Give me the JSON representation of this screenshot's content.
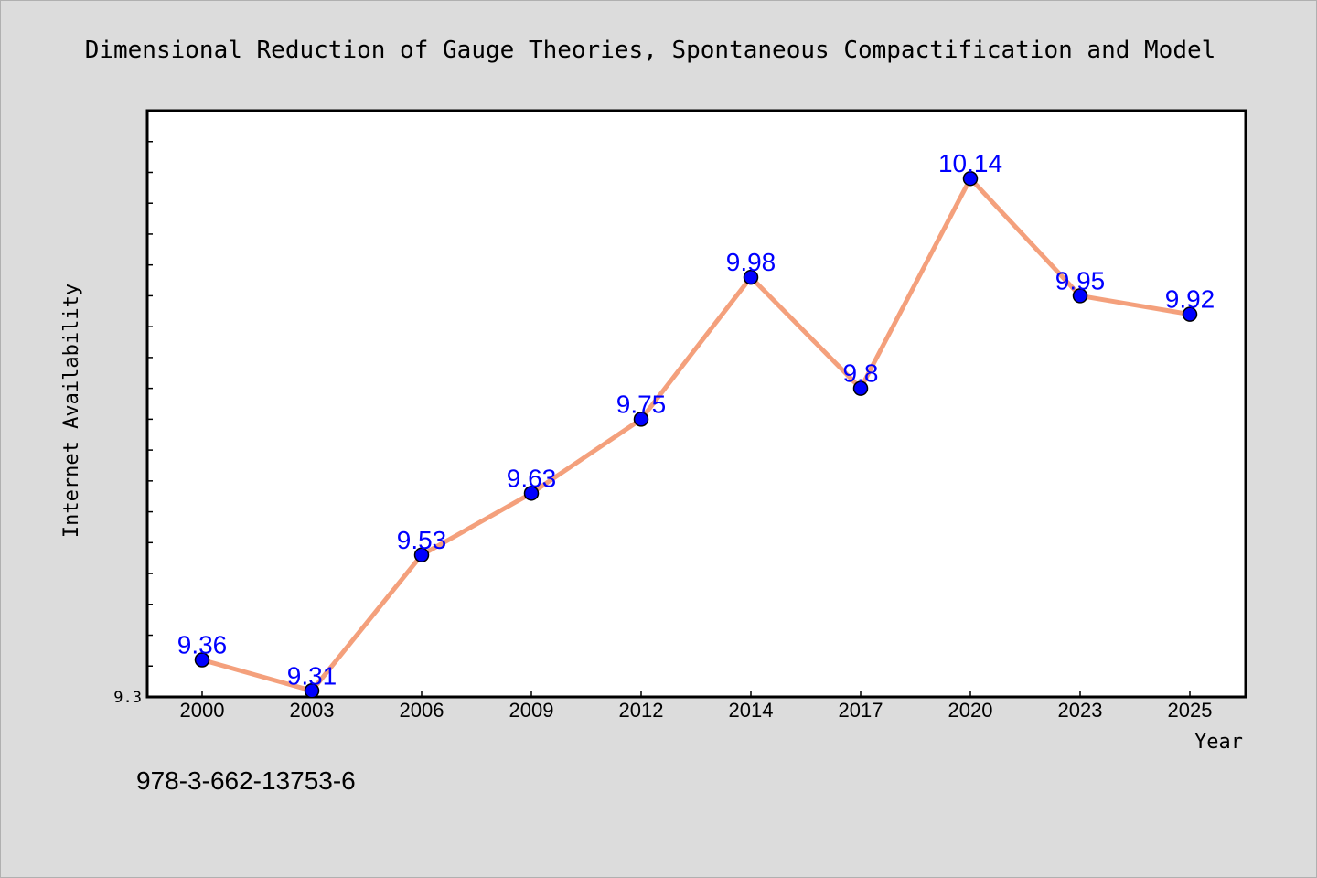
{
  "chart_data": {
    "type": "line",
    "title": "Dimensional Reduction of Gauge Theories, Spontaneous Compactification and Model",
    "xlabel": "Year",
    "ylabel": "Internet Availability",
    "categories": [
      "2000",
      "2003",
      "2006",
      "2009",
      "2012",
      "2014",
      "2017",
      "2020",
      "2023",
      "2025"
    ],
    "series": [
      {
        "values": [
          9.36,
          9.31,
          9.53,
          9.63,
          9.75,
          9.98,
          9.8,
          10.14,
          9.95,
          9.92
        ],
        "labels": [
          "9.36",
          "9.31",
          "9.53",
          "9.63",
          "9.75",
          "9.98",
          "9.8",
          "10.14",
          "9.95",
          "9.92"
        ]
      }
    ],
    "ylim": [
      9.3,
      10.25
    ],
    "yticks_labeled": [
      {
        "value": 9.3,
        "label": "9.3"
      }
    ],
    "minor_tick_step": 0.05,
    "line_color": "#f4a07c",
    "marker_color": "#0000ff",
    "label_color": "#0000ff",
    "grid": false,
    "legend": "none"
  },
  "footer": {
    "isbn": "978-3-662-13753-6"
  }
}
